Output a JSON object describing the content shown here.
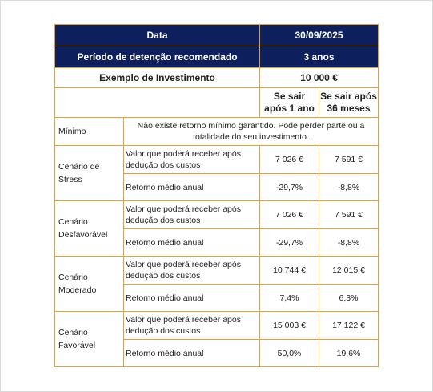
{
  "header": {
    "date_label": "Data",
    "date_value": "30/09/2025",
    "period_label": "Período de detenção recomendado",
    "period_value": "3 anos"
  },
  "example": {
    "label": "Exemplo de Investimento",
    "value": "10 000 €"
  },
  "columns": {
    "col1_line1": "Se sair",
    "col1_line2": "após 1 ano",
    "col2_line1": "Se sair após",
    "col2_line2": "36 meses"
  },
  "minimum": {
    "label": "Mínimo",
    "text_line1": "Não existe retorno mínimo garantido. Pode perder parte ou a",
    "text_line2": "totalidade do seu investimento."
  },
  "row_labels": {
    "value_line1": "Valor que poderá receber após",
    "value_line2": "dedução dos custos",
    "return": "Retorno médio anual"
  },
  "scenarios": [
    {
      "name_line1": "Cenário de",
      "name_line2": "Stress",
      "value_1y": "7 026 €",
      "value_36m": "7 591 €",
      "return_1y": "-29,7%",
      "return_36m": "-8,8%"
    },
    {
      "name_line1": "Cenário",
      "name_line2": "Desfavorável",
      "value_1y": "7 026 €",
      "value_36m": "7 591 €",
      "return_1y": "-29,7%",
      "return_36m": "-8,8%"
    },
    {
      "name_line1": "Cenário",
      "name_line2": "Moderado",
      "value_1y": "10 744 €",
      "value_36m": "12 015 €",
      "return_1y": "7,4%",
      "return_36m": "6,3%"
    },
    {
      "name_line1": "Cenário",
      "name_line2": "Favorável",
      "value_1y": "15 003 €",
      "value_36m": "17 122 €",
      "return_1y": "50,0%",
      "return_36m": "19,6%"
    }
  ]
}
